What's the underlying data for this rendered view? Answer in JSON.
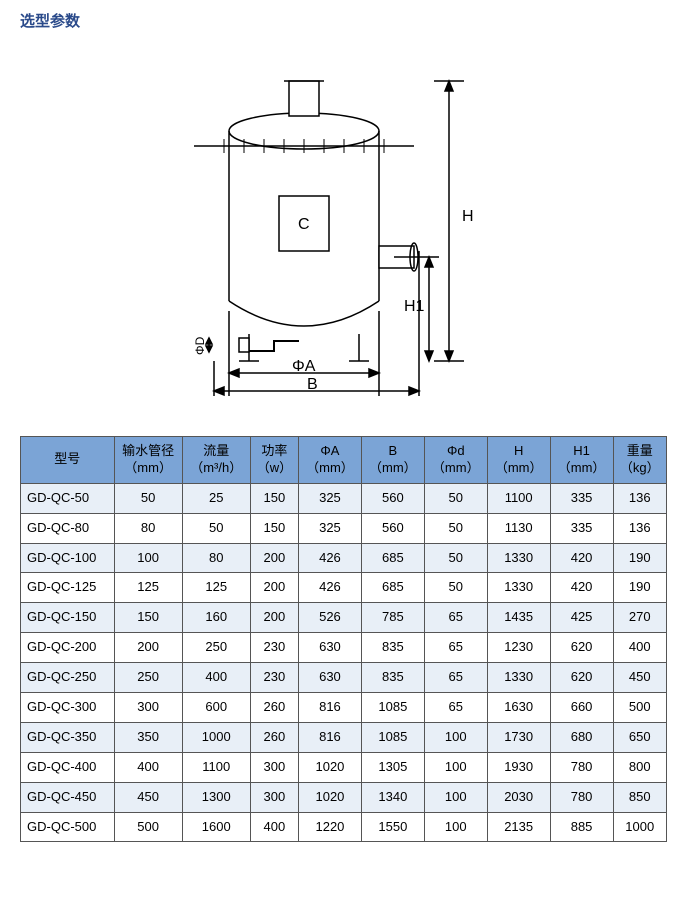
{
  "title": {
    "text": "选型参数",
    "color": "#2a4a8a",
    "fontsize": 15
  },
  "diagram": {
    "labels": {
      "C": "C",
      "H": "H",
      "H1": "H1",
      "phiD": "ΦD",
      "phiA": "ΦA",
      "B": "B"
    },
    "stroke": "#000000",
    "stroke_width": 1.5,
    "font_size": 16
  },
  "table": {
    "header_bg": "#7ba4d6",
    "row_alt_bg": "#e8eff7",
    "border_color": "#555555",
    "font_size": 13,
    "columns": [
      {
        "label": "型号",
        "unit": ""
      },
      {
        "label": "输水管径",
        "unit": "（mm）"
      },
      {
        "label": "流量",
        "unit": "（m³/h）"
      },
      {
        "label": "功率",
        "unit": "（w）"
      },
      {
        "label": "ΦA",
        "unit": "（mm）"
      },
      {
        "label": "B",
        "unit": "（mm）"
      },
      {
        "label": "Φd",
        "unit": "（mm）"
      },
      {
        "label": "H",
        "unit": "（mm）"
      },
      {
        "label": "H1",
        "unit": "（mm）"
      },
      {
        "label": "重量",
        "unit": "（kg）"
      }
    ],
    "rows": [
      [
        "GD-QC-50",
        "50",
        "25",
        "150",
        "325",
        "560",
        "50",
        "1100",
        "335",
        "136"
      ],
      [
        "GD-QC-80",
        "80",
        "50",
        "150",
        "325",
        "560",
        "50",
        "1130",
        "335",
        "136"
      ],
      [
        "GD-QC-100",
        "100",
        "80",
        "200",
        "426",
        "685",
        "50",
        "1330",
        "420",
        "190"
      ],
      [
        "GD-QC-125",
        "125",
        "125",
        "200",
        "426",
        "685",
        "50",
        "1330",
        "420",
        "190"
      ],
      [
        "GD-QC-150",
        "150",
        "160",
        "200",
        "526",
        "785",
        "65",
        "1435",
        "425",
        "270"
      ],
      [
        "GD-QC-200",
        "200",
        "250",
        "230",
        "630",
        "835",
        "65",
        "1230",
        "620",
        "400"
      ],
      [
        "GD-QC-250",
        "250",
        "400",
        "230",
        "630",
        "835",
        "65",
        "1330",
        "620",
        "450"
      ],
      [
        "GD-QC-300",
        "300",
        "600",
        "260",
        "816",
        "1085",
        "65",
        "1630",
        "660",
        "500"
      ],
      [
        "GD-QC-350",
        "350",
        "1000",
        "260",
        "816",
        "1085",
        "100",
        "1730",
        "680",
        "650"
      ],
      [
        "GD-QC-400",
        "400",
        "1100",
        "300",
        "1020",
        "1305",
        "100",
        "1930",
        "780",
        "800"
      ],
      [
        "GD-QC-450",
        "450",
        "1300",
        "300",
        "1020",
        "1340",
        "100",
        "2030",
        "780",
        "850"
      ],
      [
        "GD-QC-500",
        "500",
        "1600",
        "400",
        "1220",
        "1550",
        "100",
        "2135",
        "885",
        "1000"
      ]
    ]
  }
}
